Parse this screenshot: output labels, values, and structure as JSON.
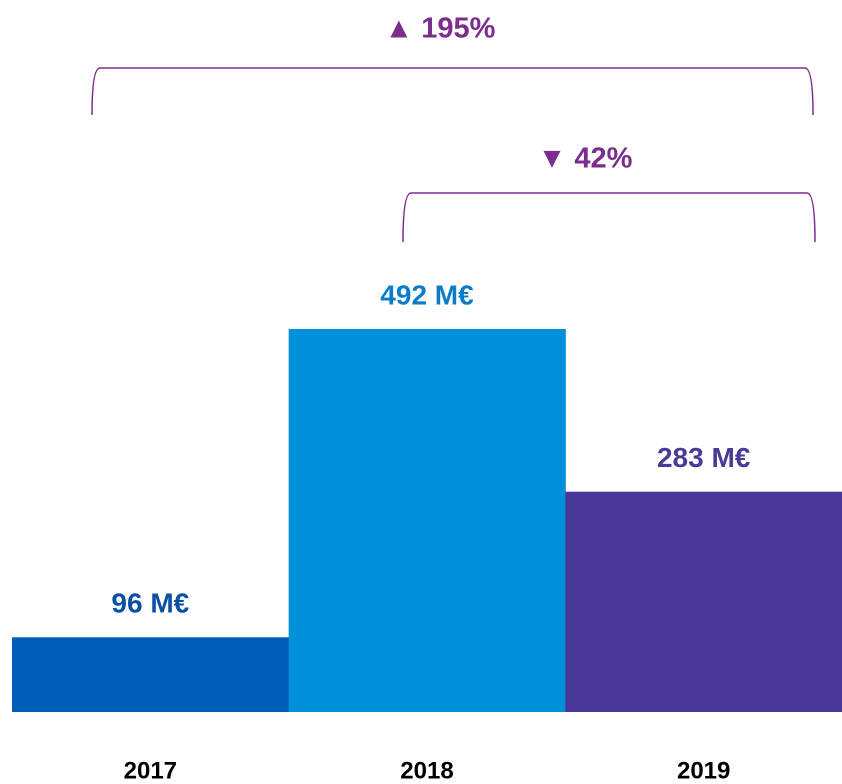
{
  "chart_data": {
    "type": "bar",
    "categories": [
      "2017",
      "2018",
      "2019"
    ],
    "values": [
      96,
      492,
      283
    ],
    "value_labels": [
      "96 M€",
      "492 M€",
      "283 M€"
    ],
    "colors": [
      "#005eb8",
      "#0091da",
      "#483698"
    ],
    "annotations": [
      "▲  195%",
      "▼ 42%"
    ]
  }
}
